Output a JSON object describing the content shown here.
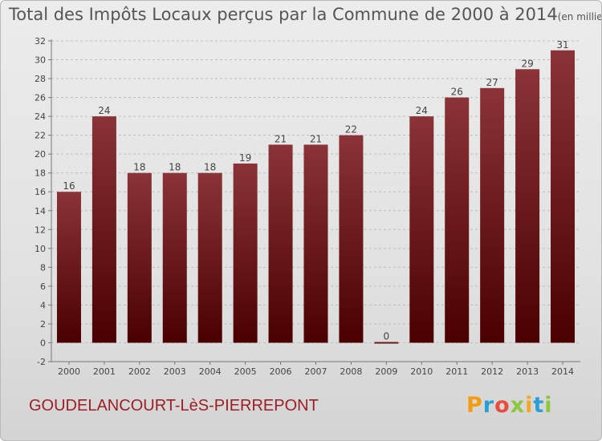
{
  "title": "Total des Impôts Locaux perçus par la Commune de 2000 à 2014",
  "unit_note": "(en milliers d'€)",
  "commune": "GOUDELANCOURT-LèS-PIERREPONT",
  "logo": {
    "letters": [
      "P",
      "r",
      "o",
      "x",
      "i",
      "t",
      "i"
    ],
    "colors": [
      "#f39c12",
      "#2a9fd6",
      "#e84c3d",
      "#8dc63f",
      "#f5a623",
      "#2a9fd6",
      "#8dc63f"
    ]
  },
  "colors": {
    "bar_top": "#8a3338",
    "bar_bottom": "#4a0000",
    "title": "#555555",
    "commune": "#9c1f25"
  },
  "chart_data": {
    "type": "bar",
    "categories": [
      "2000",
      "2001",
      "2002",
      "2003",
      "2004",
      "2005",
      "2006",
      "2007",
      "2008",
      "2009",
      "2010",
      "2011",
      "2012",
      "2013",
      "2014"
    ],
    "values": [
      16,
      24,
      18,
      18,
      18,
      19,
      21,
      21,
      22,
      0,
      24,
      26,
      27,
      29,
      31
    ],
    "data_labels": [
      "16",
      "24",
      "18",
      "18",
      "18",
      "19",
      "21",
      "21",
      "22",
      "0",
      "24",
      "26",
      "27",
      "29",
      "31"
    ],
    "yticks": [
      "-2",
      "0",
      "2",
      "4",
      "6",
      "8",
      "10",
      "12",
      "14",
      "16",
      "18",
      "20",
      "22",
      "24",
      "26",
      "28",
      "30",
      "32"
    ],
    "ylim": [
      -2,
      32
    ],
    "grid": true
  }
}
